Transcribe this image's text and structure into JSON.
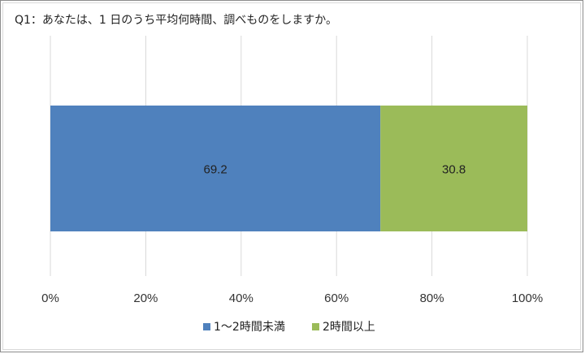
{
  "chart_data": {
    "type": "bar",
    "orientation": "horizontal",
    "stacked": true,
    "normalized": true,
    "title": "Q1：あなたは、1 日のうち平均何時間、調べものをしますか。",
    "categories": [
      ""
    ],
    "series": [
      {
        "name": "1～2時間未満",
        "values": [
          69.2
        ],
        "color": "#4f81bd"
      },
      {
        "name": "2時間以上",
        "values": [
          30.8
        ],
        "color": "#9bbb59"
      }
    ],
    "data_labels": [
      "69.2",
      "30.8"
    ],
    "x_ticks": [
      "0%",
      "20%",
      "40%",
      "60%",
      "80%",
      "100%"
    ],
    "xlim": [
      0,
      100
    ],
    "grid": true,
    "legend_position": "bottom"
  }
}
